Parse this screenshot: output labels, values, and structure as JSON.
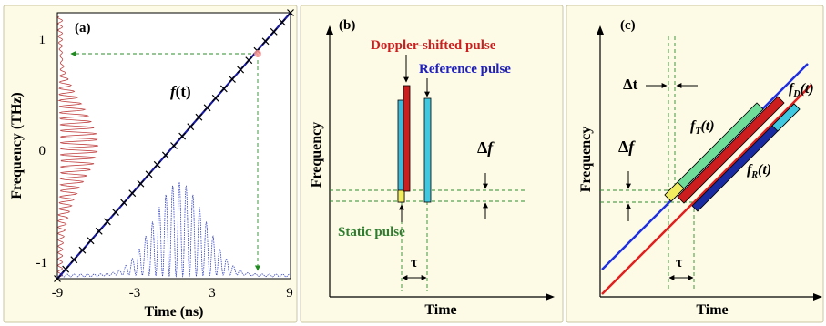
{
  "panel_a": {
    "label": "(a)",
    "ylabel": "Frequency (THz)",
    "xlabel": "Time (ns)",
    "y_ticks": [
      "1",
      "0",
      "-1"
    ],
    "x_ticks": [
      "-9",
      "-3",
      "3",
      "9"
    ],
    "curve_label": "f(t)",
    "curve_label_f": "f",
    "curve_label_t": "(t)",
    "line_color": "#1a1aa0",
    "marker_color": "#000000",
    "spectrum_color": "#c04040",
    "envelope_color": "#3040c0",
    "chart_data": {
      "type": "line",
      "xlim": [
        -9,
        9
      ],
      "ylim": [
        -1.15,
        1.2
      ],
      "series": [
        {
          "x": [
            -9,
            9
          ],
          "y": [
            -1.15,
            1.2
          ]
        }
      ]
    }
  },
  "panel_b": {
    "label": "(b)",
    "ylabel": "Frequency",
    "xlabel": "Time",
    "doppler_label": "Doppler-shifted pulse",
    "reference_label": "Reference pulse",
    "static_label": "Static pulse",
    "delta_f": "Δf",
    "delta_f_symbol": "Δ",
    "delta_f_f": "f",
    "tau": "τ",
    "doppler_color": "#cc1e1e",
    "reference_color": "#2020c0",
    "static_color": "#2e7d2e"
  },
  "panel_c": {
    "label": "(c)",
    "ylabel": "Frequency",
    "xlabel": "Time",
    "delta_t": "Δt",
    "delta_f": "Δf",
    "delta_f_symbol": "Δ",
    "delta_f_f": "f",
    "tau": "τ",
    "fT_main": "f",
    "fT_sub": "T",
    "fT_t": "(t)",
    "fD_main": "f",
    "fD_sub": "D",
    "fD_t": "(t)",
    "fR_main": "f",
    "fR_sub": "R",
    "fR_t": "(t)",
    "blue_line_color": "#1f2fe0",
    "red_line_color": "#e01f1f"
  }
}
